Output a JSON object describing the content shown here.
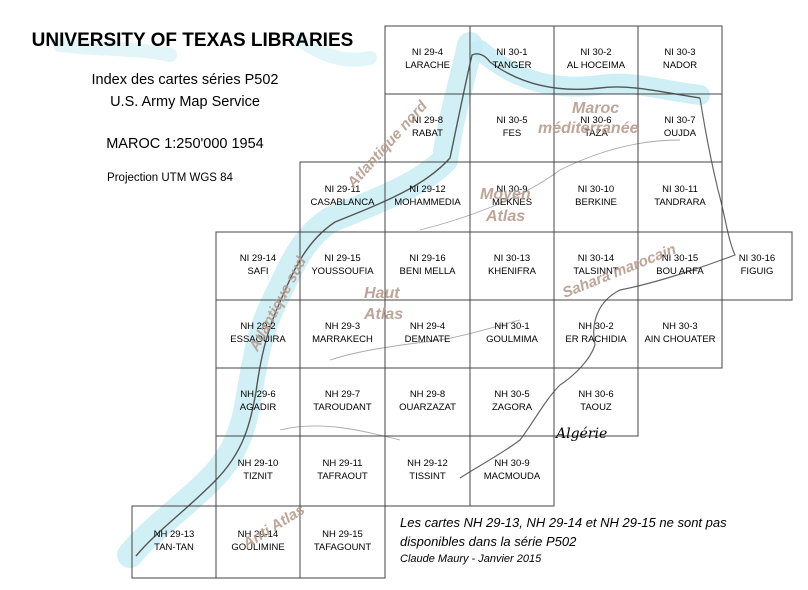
{
  "header": {
    "title": "UNIVERSITY OF TEXAS LIBRARIES",
    "subtitle1": "Index des cartes séries P502",
    "subtitle2": "U.S. Army Map Service",
    "scale": "MAROC 1:250'000 1954",
    "projection": "Projection UTM WGS 84"
  },
  "note": {
    "line1": "Les cartes NH 29-13, NH 29-14 et NH 29-15 ne sont pas",
    "line2": "disponibles dans la série P502",
    "author": "Claude Maury - Janvier 2015"
  },
  "country_label": "Algérie",
  "regions": {
    "maroc": "Maroc",
    "mediterranee": "méditerranée",
    "atlantique_nord": "Atlantique nord",
    "atlantique_sud": "Atlantique sud",
    "moyen": "Moyen",
    "atlas1": "Atlas",
    "haut": "Haut",
    "atlas2": "Atlas",
    "sahara": "Sahara marocain",
    "anti_atlas": "Anti Atlas"
  },
  "colors": {
    "sea": "#c6ecf4",
    "grid": "#444444",
    "coast": "#555555",
    "region_text": "#b89c8c"
  },
  "sheets": [
    {
      "code": "NI 29-4",
      "name": "LARACHE"
    },
    {
      "code": "NI 30-1",
      "name": "TANGER"
    },
    {
      "code": "NI 30-2",
      "name": "AL HOCEIMA"
    },
    {
      "code": "NI 30-3",
      "name": "NADOR"
    },
    {
      "code": "NI 29-8",
      "name": "RABAT"
    },
    {
      "code": "NI 30-5",
      "name": "FES"
    },
    {
      "code": "NI 30-6",
      "name": "TAZA"
    },
    {
      "code": "NI 30-7",
      "name": "OUJDA"
    },
    {
      "code": "NI 29-11",
      "name": "CASABLANCA"
    },
    {
      "code": "NI 29-12",
      "name": "MOHAMMEDIA"
    },
    {
      "code": "NI 30-9",
      "name": "MEKNES"
    },
    {
      "code": "NI 30-10",
      "name": "BERKINE"
    },
    {
      "code": "NI 30-11",
      "name": "TANDRARA"
    },
    {
      "code": "NI 29-14",
      "name": "SAFI"
    },
    {
      "code": "NI 29-15",
      "name": "YOUSSOUFIA"
    },
    {
      "code": "NI 29-16",
      "name": "BENI MELLA"
    },
    {
      "code": "NI 30-13",
      "name": "KHENIFRA"
    },
    {
      "code": "NI 30-14",
      "name": "TALSINNT"
    },
    {
      "code": "NI 30-15",
      "name": "BOU ARFA"
    },
    {
      "code": "NI 30-16",
      "name": "FIGUIG"
    },
    {
      "code": "NH 29-2",
      "name": "ESSAOUIRA"
    },
    {
      "code": "NH 29-3",
      "name": "MARRAKECH"
    },
    {
      "code": "NH 29-4",
      "name": "DEMNATE"
    },
    {
      "code": "NH 30-1",
      "name": "GOULMIMA"
    },
    {
      "code": "NH 30-2",
      "name": "ER RACHIDIA"
    },
    {
      "code": "NH 30-3",
      "name": "AIN CHOUATER"
    },
    {
      "code": "NH 29-6",
      "name": "AGADIR"
    },
    {
      "code": "NH 29-7",
      "name": "TAROUDANT"
    },
    {
      "code": "NH 29-8",
      "name": "OUARZAZAT"
    },
    {
      "code": "NH 30-5",
      "name": "ZAGORA"
    },
    {
      "code": "NH 30-6",
      "name": "TAOUZ"
    },
    {
      "code": "NH 29-10",
      "name": "TIZNIT"
    },
    {
      "code": "NH 29-11",
      "name": "TAFRAOUT"
    },
    {
      "code": "NH 29-12",
      "name": "TISSINT"
    },
    {
      "code": "NH 30-9",
      "name": "MACMOUDA"
    },
    {
      "code": "NH 29-13",
      "name": "TAN-TAN"
    },
    {
      "code": "NH 29-14",
      "name": "GOULIMINE"
    },
    {
      "code": "NH 29-15",
      "name": "TAFAGOUNT"
    }
  ]
}
